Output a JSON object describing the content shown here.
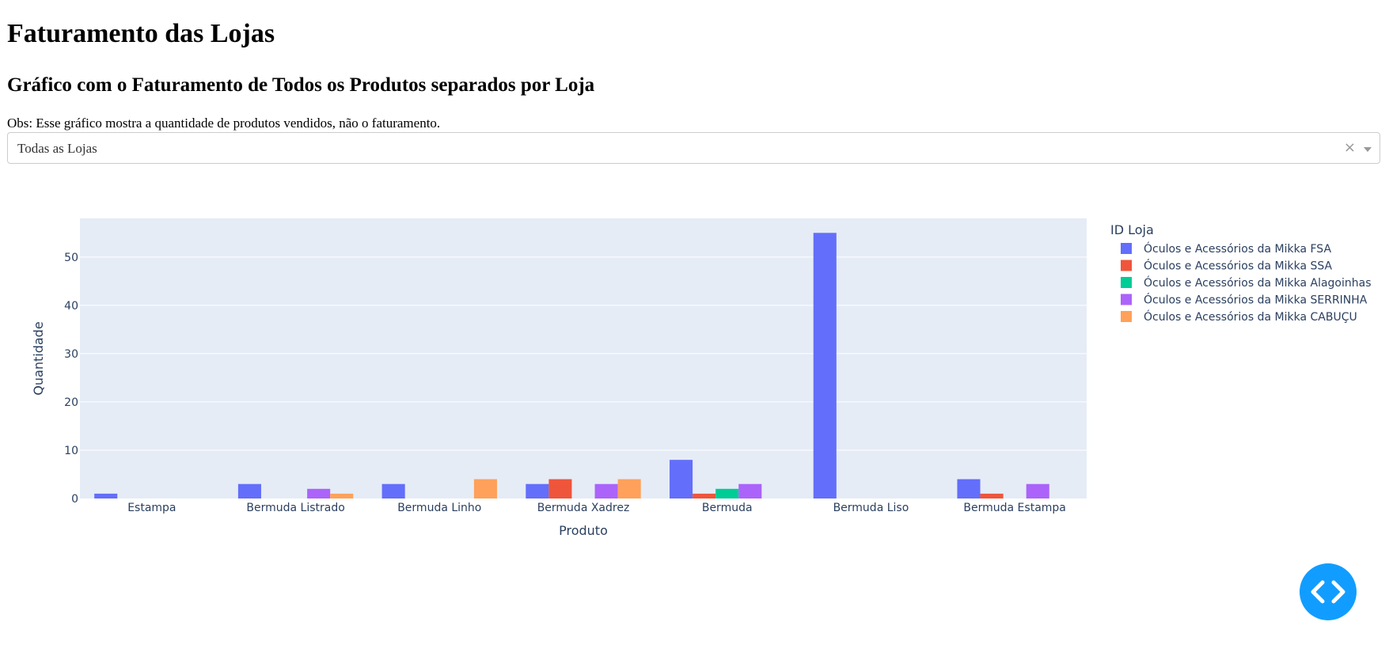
{
  "page": {
    "title": "Faturamento das Lojas",
    "subtitle": "Gráfico com o Faturamento de Todos os Produtos separados por Loja",
    "note": "Obs: Esse gráfico mostra a quantidade de produtos vendidos, não o faturamento."
  },
  "dropdown": {
    "selected": "Todas as Lojas",
    "clear_icon": "×"
  },
  "debug_button": {
    "icon": "code-icon"
  },
  "chart_data": {
    "type": "bar",
    "barmode": "group",
    "xlabel": "Produto",
    "ylabel": "Quantidade",
    "ylim": [
      0,
      58
    ],
    "yticks": [
      0,
      10,
      20,
      30,
      40,
      50
    ],
    "grid": true,
    "legend_title": "ID Loja",
    "legend_position": "right",
    "categories": [
      "Estampa",
      "Bermuda Listrado",
      "Bermuda Linho",
      "Bermuda Xadrez",
      "Bermuda",
      "Bermuda Liso",
      "Bermuda Estampa"
    ],
    "series": [
      {
        "name": "Óculos e Acessórios da Mikka FSA",
        "color": "#636efa",
        "values": [
          1,
          3,
          3,
          3,
          8,
          55,
          4
        ]
      },
      {
        "name": "Óculos e Acessórios da Mikka SSA",
        "color": "#ef553b",
        "values": [
          0,
          0,
          0,
          4,
          1,
          0,
          1
        ]
      },
      {
        "name": "Óculos e Acessórios da Mikka Alagoinhas",
        "color": "#00cc96",
        "values": [
          0,
          0,
          0,
          0,
          2,
          0,
          0
        ]
      },
      {
        "name": "Óculos e Acessórios da Mikka SERRINHA",
        "color": "#ab63fa",
        "values": [
          0,
          2,
          0,
          3,
          3,
          0,
          3
        ]
      },
      {
        "name": "Óculos e Acessórios da Mikka CABUÇU",
        "color": "#ffa15a",
        "values": [
          0,
          1,
          4,
          4,
          0,
          0,
          0
        ]
      }
    ],
    "plot_bg": "#e5ecf6",
    "text_color": "#2a3f5f"
  }
}
